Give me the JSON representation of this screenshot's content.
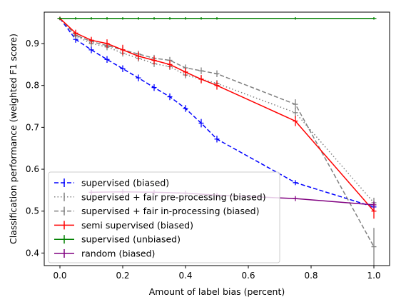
{
  "chart_data": {
    "type": "line",
    "title": "",
    "xlabel": "Amount of label bias (percent)",
    "ylabel": "Classification performance (weighted F1 score)",
    "xlim": [
      -0.05,
      1.05
    ],
    "ylim": [
      0.37,
      0.975
    ],
    "xticks": [
      0.0,
      0.2,
      0.4,
      0.6,
      0.8,
      1.0
    ],
    "xtick_labels": [
      "0.0",
      "0.2",
      "0.4",
      "0.6",
      "0.8",
      "1.0"
    ],
    "yticks": [
      0.4,
      0.5,
      0.6,
      0.7,
      0.8,
      0.9
    ],
    "ytick_labels": [
      "0.4",
      "0.5",
      "0.6",
      "0.7",
      "0.8",
      "0.9"
    ],
    "grid": false,
    "legend_position": "lower-left",
    "series": [
      {
        "name": "supervised (biased)",
        "color": "#0000ff",
        "linestyle": "dashed",
        "x": [
          0.0,
          0.05,
          0.1,
          0.15,
          0.2,
          0.25,
          0.3,
          0.35,
          0.4,
          0.45,
          0.5,
          0.75,
          1.0
        ],
        "y": [
          0.96,
          0.91,
          0.885,
          0.862,
          0.84,
          0.818,
          0.795,
          0.773,
          0.745,
          0.71,
          0.672,
          0.568,
          0.51
        ],
        "err": [
          0.004,
          0.008,
          0.008,
          0.008,
          0.008,
          0.008,
          0.008,
          0.008,
          0.008,
          0.01,
          0.008,
          0.006,
          0.01
        ]
      },
      {
        "name": "supervised + fair pre-processing (biased)",
        "color": "#808080",
        "linestyle": "dotted",
        "x": [
          0.0,
          0.05,
          0.1,
          0.15,
          0.2,
          0.25,
          0.3,
          0.35,
          0.4,
          0.45,
          0.5,
          0.75,
          1.0
        ],
        "y": [
          0.96,
          0.918,
          0.9,
          0.892,
          0.877,
          0.865,
          0.852,
          0.845,
          0.825,
          0.815,
          0.805,
          0.735,
          0.52
        ],
        "err": [
          0.004,
          0.008,
          0.008,
          0.008,
          0.008,
          0.008,
          0.008,
          0.008,
          0.008,
          0.008,
          0.008,
          0.012,
          0.012
        ]
      },
      {
        "name": "supervised + fair in-processing (biased)",
        "color": "#808080",
        "linestyle": "dashed",
        "x": [
          0.0,
          0.05,
          0.1,
          0.15,
          0.2,
          0.25,
          0.3,
          0.35,
          0.4,
          0.45,
          0.5,
          0.75,
          1.0
        ],
        "y": [
          0.96,
          0.92,
          0.905,
          0.895,
          0.885,
          0.875,
          0.865,
          0.86,
          0.842,
          0.835,
          0.828,
          0.755,
          0.415
        ],
        "err": [
          0.004,
          0.008,
          0.008,
          0.008,
          0.008,
          0.008,
          0.008,
          0.008,
          0.008,
          0.008,
          0.008,
          0.012,
          0.045
        ]
      },
      {
        "name": "semi supervised (biased)",
        "color": "#ff0000",
        "linestyle": "solid",
        "x": [
          0.0,
          0.05,
          0.1,
          0.15,
          0.2,
          0.25,
          0.3,
          0.35,
          0.4,
          0.45,
          0.5,
          0.75,
          1.0
        ],
        "y": [
          0.96,
          0.925,
          0.908,
          0.9,
          0.885,
          0.87,
          0.86,
          0.85,
          0.832,
          0.815,
          0.8,
          0.715,
          0.5
        ],
        "err": [
          0.004,
          0.008,
          0.008,
          0.01,
          0.012,
          0.01,
          0.01,
          0.01,
          0.01,
          0.01,
          0.01,
          0.012,
          0.018
        ]
      },
      {
        "name": "supervised (unbiased)",
        "color": "#008000",
        "linestyle": "solid",
        "x": [
          0.0,
          0.05,
          0.1,
          0.15,
          0.2,
          0.25,
          0.3,
          0.35,
          0.4,
          0.45,
          0.5,
          0.75,
          1.0
        ],
        "y": [
          0.96,
          0.96,
          0.96,
          0.96,
          0.96,
          0.96,
          0.96,
          0.96,
          0.96,
          0.96,
          0.96,
          0.96,
          0.96
        ],
        "err": [
          0.003,
          0.003,
          0.003,
          0.003,
          0.003,
          0.003,
          0.003,
          0.003,
          0.003,
          0.003,
          0.003,
          0.003,
          0.003
        ]
      },
      {
        "name": "random (biased)",
        "color": "#800080",
        "linestyle": "solid",
        "x": [
          0.1,
          0.2,
          0.3,
          0.4,
          0.5,
          0.75,
          1.0
        ],
        "y": [
          0.545,
          0.546,
          0.545,
          0.543,
          0.538,
          0.53,
          0.515
        ],
        "err": [
          0.006,
          0.006,
          0.006,
          0.006,
          0.006,
          0.006,
          0.008
        ]
      }
    ]
  }
}
